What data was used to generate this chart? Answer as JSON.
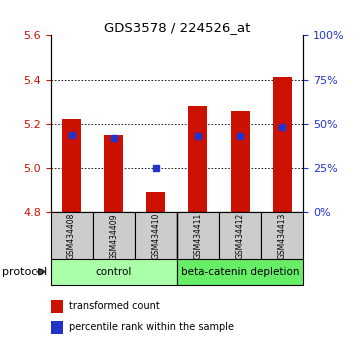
{
  "title": "GDS3578 / 224526_at",
  "samples": [
    "GSM434408",
    "GSM434409",
    "GSM434410",
    "GSM434411",
    "GSM434412",
    "GSM434413"
  ],
  "transformed_count": [
    5.22,
    5.15,
    4.89,
    5.28,
    5.26,
    5.41
  ],
  "percentile_rank": [
    44,
    42,
    25,
    43,
    43,
    48
  ],
  "ylim_left": [
    4.8,
    5.6
  ],
  "ylim_right": [
    0,
    100
  ],
  "yticks_left": [
    4.8,
    5.0,
    5.2,
    5.4,
    5.6
  ],
  "yticks_right": [
    0,
    25,
    50,
    75,
    100
  ],
  "bar_bottom": 4.8,
  "bar_color": "#cc1100",
  "blue_color": "#2233cc",
  "group_colors": [
    "#aaffaa",
    "#66ee66"
  ],
  "group_labels": [
    "control",
    "beta-catenin depletion"
  ],
  "group_split": 3,
  "protocol_label": "protocol",
  "legend_items": [
    {
      "label": "transformed count",
      "color": "#cc1100"
    },
    {
      "label": "percentile rank within the sample",
      "color": "#2233cc"
    }
  ],
  "tick_label_color_left": "#cc1100",
  "tick_label_color_right": "#2233cc",
  "sample_box_color": "#cccccc",
  "bar_width": 0.45
}
